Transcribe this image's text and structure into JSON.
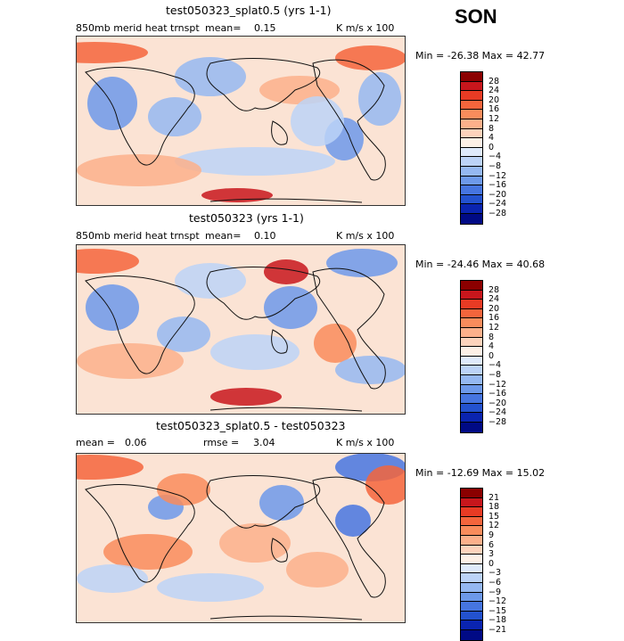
{
  "season": "SON",
  "panels": [
    {
      "title": "test050323_splat0.5 (yrs 1-1)",
      "left_label": "850mb merid heat trnspt",
      "mean_label": "mean=",
      "mean_value": "0.15",
      "rmse_label": "",
      "rmse_value": "",
      "units": "K m/s x 100",
      "minmax": "Min = -26.38 Max =  42.77",
      "levels": [
        "28",
        "24",
        "20",
        "16",
        "12",
        "8",
        "4",
        "0",
        "−4",
        "−8",
        "−12",
        "−16",
        "−20",
        "−24",
        "−28"
      ],
      "colors": [
        "#8b0000",
        "#c8161c",
        "#e83b24",
        "#f4653c",
        "#f98c5c",
        "#fcb08b",
        "#fdd3bc",
        "#fdf0e6",
        "#dfeafb",
        "#bcd3f7",
        "#95b8f1",
        "#6d99ea",
        "#4675e0",
        "#2352cf",
        "#0a24b0",
        "#000a85"
      ]
    },
    {
      "title": "test050323 (yrs 1-1)",
      "left_label": "850mb merid heat trnspt",
      "mean_label": "mean=",
      "mean_value": "0.10",
      "rmse_label": "",
      "rmse_value": "",
      "units": "K m/s x 100",
      "minmax": "Min = -24.46 Max =  40.68",
      "levels": [
        "28",
        "24",
        "20",
        "16",
        "12",
        "8",
        "4",
        "0",
        "−4",
        "−8",
        "−12",
        "−16",
        "−20",
        "−24",
        "−28"
      ],
      "colors": [
        "#8b0000",
        "#c8161c",
        "#e83b24",
        "#f4653c",
        "#f98c5c",
        "#fcb08b",
        "#fdd3bc",
        "#fdf0e6",
        "#dfeafb",
        "#bcd3f7",
        "#95b8f1",
        "#6d99ea",
        "#4675e0",
        "#2352cf",
        "#0a24b0",
        "#000a85"
      ]
    },
    {
      "title": "test050323_splat0.5 - test050323",
      "left_label": "",
      "mean_label": "mean =",
      "mean_value": "0.06",
      "rmse_label": "rmse =",
      "rmse_value": "3.04",
      "units": "K m/s x 100",
      "minmax": "Min = -12.69 Max =  15.02",
      "levels": [
        "21",
        "18",
        "15",
        "12",
        "9",
        "6",
        "3",
        "0",
        "−3",
        "−6",
        "−9",
        "−12",
        "−15",
        "−18",
        "−21"
      ],
      "colors": [
        "#8b0000",
        "#c8161c",
        "#e83b24",
        "#f4653c",
        "#f98c5c",
        "#fcb08b",
        "#fdd3bc",
        "#fdf0e6",
        "#dfeafb",
        "#bcd3f7",
        "#95b8f1",
        "#6d99ea",
        "#4675e0",
        "#2352cf",
        "#0a24b0",
        "#000a85"
      ]
    }
  ]
}
